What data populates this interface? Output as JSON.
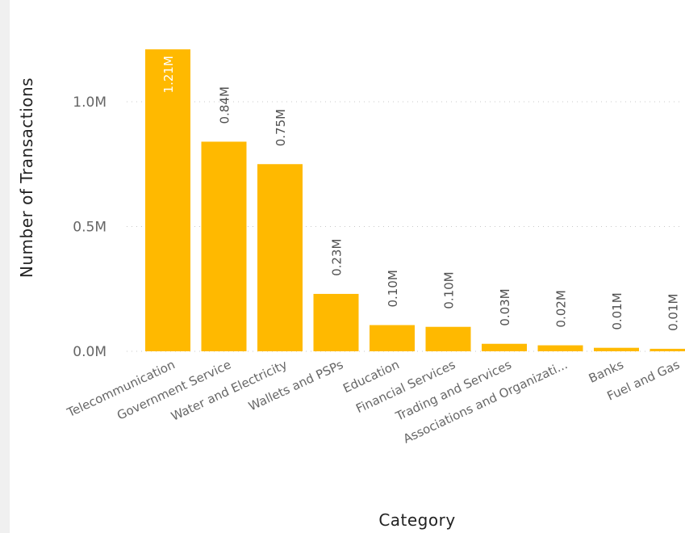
{
  "chart_data": {
    "type": "bar",
    "xlabel": "Category",
    "ylabel": "Number of Transactions",
    "ylim": [
      0,
      1.3
    ],
    "yticks": [
      {
        "value": 0.0,
        "label": "0.0M"
      },
      {
        "value": 0.5,
        "label": "0.5M"
      },
      {
        "value": 1.0,
        "label": "1.0M"
      }
    ],
    "grid": true,
    "categories": [
      "Telecommunication",
      "Government Service",
      "Water and Electricity",
      "Wallets and PSPs",
      "Education",
      "Financial Services",
      "Trading and Services",
      "Associations and Organizati...",
      "Banks",
      "Fuel and Gas"
    ],
    "values": [
      1.21,
      0.84,
      0.75,
      0.23,
      0.105,
      0.098,
      0.03,
      0.024,
      0.014,
      0.01
    ],
    "data_labels": [
      "1.21M",
      "0.84M",
      "0.75M",
      "0.23M",
      "0.10M",
      "0.10M",
      "0.03M",
      "0.02M",
      "0.01M",
      "0.01M"
    ],
    "bar_color": "#FFB900",
    "label_inside_color": "#ffffff",
    "label_outside_color": "#505050"
  }
}
